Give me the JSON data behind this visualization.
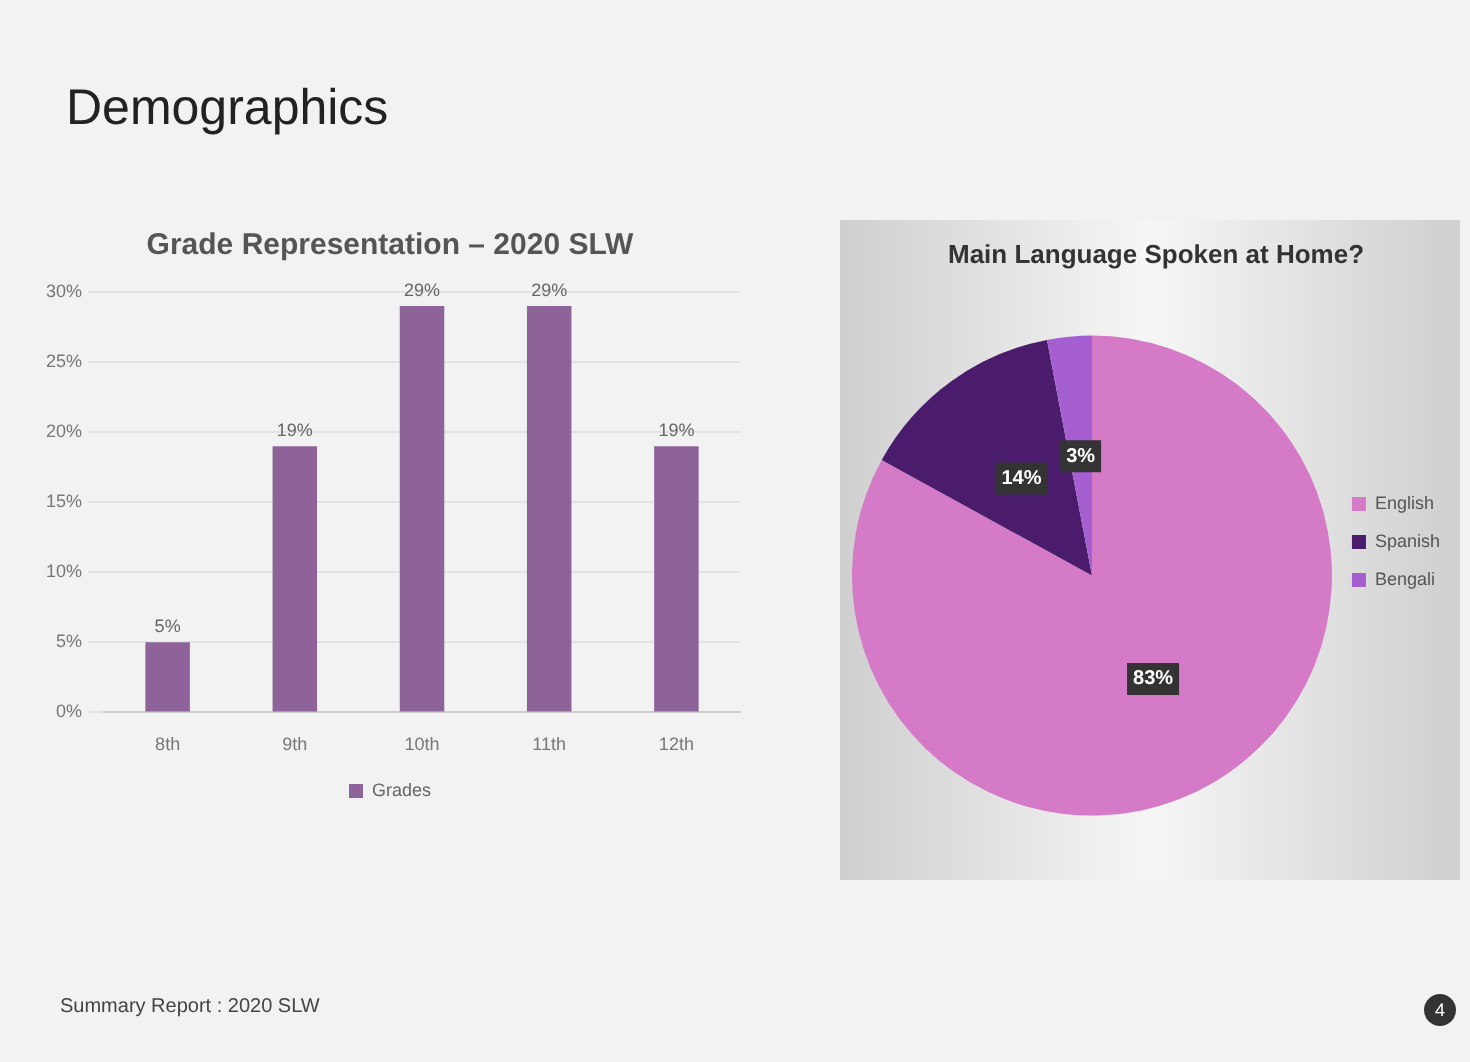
{
  "chart_data": [
    {
      "type": "bar",
      "title": "Grade Representation – 2020 SLW",
      "categories": [
        "8th",
        "9th",
        "10th",
        "11th",
        "12th"
      ],
      "series": [
        {
          "name": "Grades",
          "color": "#8e6399",
          "values": [
            5,
            19,
            29,
            29,
            19
          ],
          "value_labels": [
            "5%",
            "19%",
            "29%",
            "29%",
            "19%"
          ]
        }
      ],
      "ylim": [
        0,
        30
      ],
      "yticks": [
        {
          "value": 0,
          "label": "0%"
        },
        {
          "value": 5,
          "label": "5%"
        },
        {
          "value": 10,
          "label": "10%"
        },
        {
          "value": 15,
          "label": "15%"
        },
        {
          "value": 20,
          "label": "20%"
        },
        {
          "value": 25,
          "label": "25%"
        },
        {
          "value": 30,
          "label": "30%"
        }
      ],
      "grid": "y",
      "legend": "bottom",
      "annotations": [
        "Demographics",
        "Summary Report : 2020 SLW",
        "4"
      ]
    },
    {
      "type": "pie",
      "title": "Main Language Spoken at Home?",
      "categories": [
        "English",
        "Spanish",
        "Bengali"
      ],
      "values": [
        83,
        14,
        3
      ],
      "value_labels": [
        "83%",
        "14%",
        "3%"
      ],
      "colors": [
        "#d47ac6",
        "#4a1c6b",
        "#a55fd1"
      ],
      "legend": "right"
    }
  ]
}
